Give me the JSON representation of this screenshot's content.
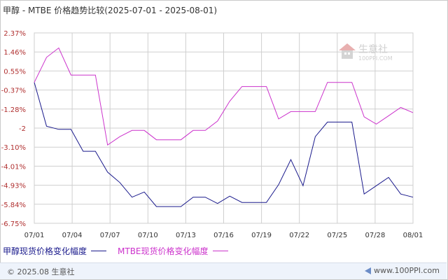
{
  "title": "甲醇 - MTBE 价格趋势比较(2025-07-01 - 2025-08-01)",
  "watermark": {
    "brand": "生意社",
    "domain": "100PPI.COM"
  },
  "footer": {
    "copyright": "© 2025.08 生意社",
    "site": "www.100PPI.com"
  },
  "colors": {
    "series1": "#1a1a8c",
    "series2": "#cc33cc",
    "grid": "#cfcfcf",
    "axis_text": "#b03030",
    "x_text": "#333333"
  },
  "chart_data": {
    "type": "line",
    "title": "甲醇 - MTBE 价格趋势比较(2025-07-01 - 2025-08-01)",
    "y_ticks": [
      "2.37%",
      "1.46%",
      "0.55%",
      "-0.37%",
      "-1.28%",
      "-2",
      "-3.10%",
      "-4.01%",
      "-4.93%",
      "-5.84%",
      "-6.75%"
    ],
    "ylim": [
      -6.75,
      2.37
    ],
    "x_ticks": [
      "07/01",
      "07/04",
      "07/07",
      "07/10",
      "07/13",
      "07/16",
      "07/19",
      "07/22",
      "07/25",
      "07/28",
      "08/01"
    ],
    "x_dates": [
      "07/01",
      "07/02",
      "07/03",
      "07/04",
      "07/05",
      "07/06",
      "07/07",
      "07/08",
      "07/09",
      "07/10",
      "07/11",
      "07/12",
      "07/13",
      "07/14",
      "07/15",
      "07/16",
      "07/17",
      "07/18",
      "07/19",
      "07/20",
      "07/21",
      "07/22",
      "07/23",
      "07/24",
      "07/25",
      "07/26",
      "07/27",
      "07/28",
      "07/29",
      "07/30",
      "07/31",
      "08/01"
    ],
    "grid": true,
    "legend_position": "bottom-left",
    "series": [
      {
        "name": "甲醇现货价格变化幅度",
        "values": [
          0,
          -2.1,
          -2.25,
          -2.25,
          -3.3,
          -3.3,
          -4.3,
          -4.8,
          -5.5,
          -5.25,
          -5.95,
          -5.95,
          -5.95,
          -5.5,
          -5.5,
          -5.8,
          -5.45,
          -5.75,
          -5.75,
          -5.75,
          -4.9,
          -3.7,
          -4.95,
          -2.6,
          -1.9,
          -1.9,
          -1.9,
          -5.35,
          -4.95,
          -4.55,
          -5.35,
          -5.5
        ]
      },
      {
        "name": "MTBE现货价格变化幅度",
        "values": [
          0,
          1.2,
          1.65,
          0.35,
          0.35,
          0.35,
          -3.0,
          -2.6,
          -2.3,
          -2.3,
          -2.75,
          -2.75,
          -2.75,
          -2.3,
          -2.3,
          -1.85,
          -0.9,
          -0.2,
          -0.2,
          -0.2,
          -1.75,
          -1.4,
          -1.4,
          -1.4,
          0,
          0,
          0,
          -1.65,
          -2.0,
          -1.6,
          -1.2,
          -1.45
        ]
      }
    ]
  }
}
